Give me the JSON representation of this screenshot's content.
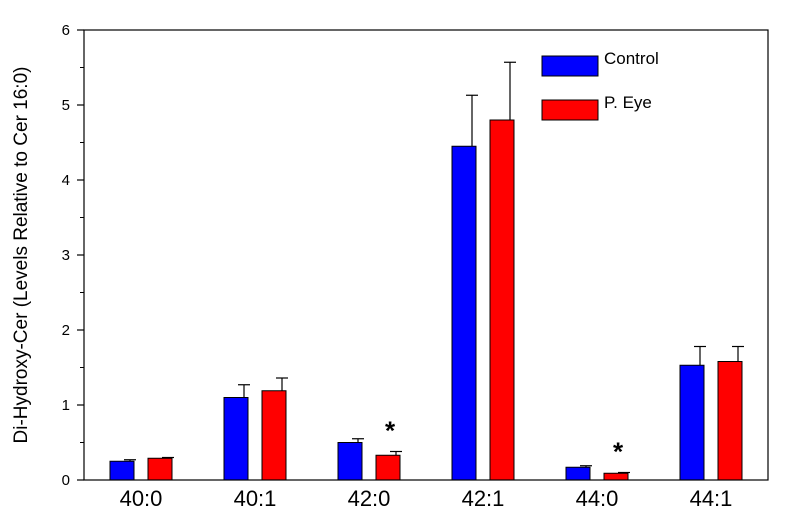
{
  "chart_data": {
    "type": "bar",
    "title": "",
    "xlabel": "",
    "ylabel": "Di-Hydroxy-Cer (Levels Relative to Cer 16:0)",
    "ylim": [
      0,
      6
    ],
    "yticks": [
      "0",
      "1",
      "2",
      "3",
      "4",
      "5",
      "6"
    ],
    "categories": [
      "40:0",
      "40:1",
      "42:0",
      "42:1",
      "44:0",
      "44:1"
    ],
    "series": [
      {
        "name": "Control",
        "color": "#0000ff",
        "values": [
          0.25,
          1.1,
          0.5,
          4.45,
          0.17,
          1.53
        ],
        "errors": [
          0.02,
          0.17,
          0.05,
          0.68,
          0.02,
          0.25
        ]
      },
      {
        "name": "P. Eye",
        "color": "#ff0000",
        "values": [
          0.29,
          1.19,
          0.33,
          4.8,
          0.09,
          1.58
        ],
        "errors": [
          0.01,
          0.17,
          0.05,
          0.77,
          0.01,
          0.2
        ]
      }
    ],
    "annotations": [
      {
        "category": "42:0",
        "text": "*"
      },
      {
        "category": "44:0",
        "text": "*"
      }
    ],
    "legend": {
      "position": "top-right"
    },
    "grid": false
  }
}
